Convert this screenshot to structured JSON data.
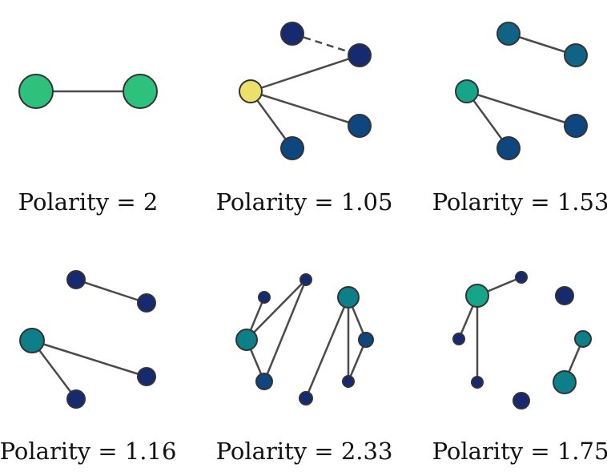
{
  "colors": {
    "edge": "#4a4a4a",
    "node_stroke": "#333333",
    "yellow": "#ece06c",
    "green": "#2dc17d",
    "teal_green": "#17a58a",
    "teal": "#0d7f88",
    "blue_teal": "#0f6486",
    "blue": "#0e4680",
    "navy": "#152a6f"
  },
  "panels": [
    {
      "caption": "Polarity = 2"
    },
    {
      "caption": "Polarity = 1.05"
    },
    {
      "caption": "Polarity = 1.53"
    },
    {
      "caption": "Polarity = 1.16"
    },
    {
      "caption": "Polarity = 2.33"
    },
    {
      "caption": "Polarity = 1.75"
    }
  ]
}
